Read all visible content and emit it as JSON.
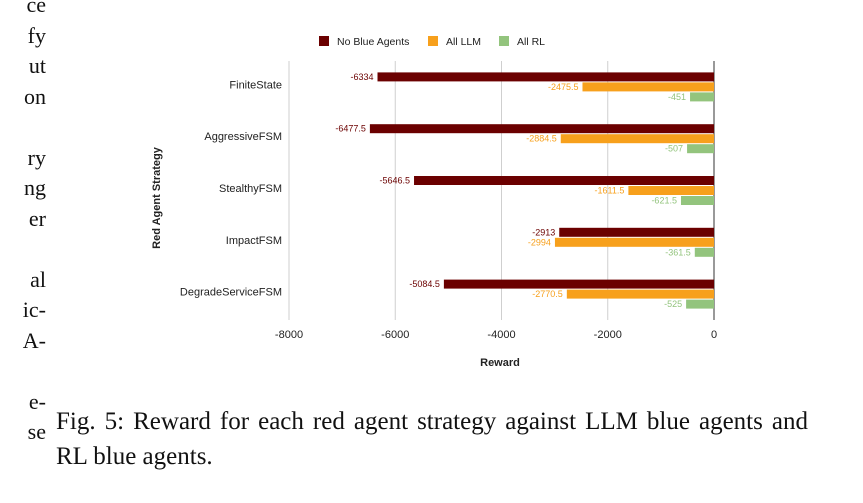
{
  "left_margin_text": [
    "ce",
    "fy",
    "ut",
    "on",
    "",
    "ry",
    "ng",
    "er",
    "",
    "al",
    "ic-",
    "A-",
    "",
    "e-",
    "se"
  ],
  "caption": "Fig. 5: Reward for each red agent strategy against LLM blue agents and RL blue agents.",
  "chart_data": {
    "type": "bar",
    "orientation": "horizontal",
    "title": "",
    "xlabel": "Reward",
    "ylabel": "Red Agent Strategy",
    "categories": [
      "FiniteState",
      "AggressiveFSM",
      "StealthyFSM",
      "ImpactFSM",
      "DegradeServiceFSM"
    ],
    "series": [
      {
        "name": "No Blue Agents",
        "color": "#6b0000",
        "values": [
          -6334,
          -6477.5,
          -5646.5,
          -2913,
          -5084.5
        ],
        "labels": [
          "-6334",
          "-6477.5",
          "-5646.5",
          "-2913",
          "-5084.5"
        ]
      },
      {
        "name": "All LLM",
        "color": "#f7a01c",
        "values": [
          -2475.5,
          -2884.5,
          -1611.5,
          -2994,
          -2770.5
        ],
        "labels": [
          "-2475.5",
          "-2884.5",
          "-1611.5",
          "-2994",
          "-2770.5"
        ]
      },
      {
        "name": "All RL",
        "color": "#93c47d",
        "values": [
          -451,
          -507,
          -621.5,
          -361.5,
          -525
        ],
        "labels": [
          "-451",
          "-507",
          "-621.5",
          "-361.5",
          "-525"
        ]
      }
    ],
    "xlim": [
      -8000,
      0
    ],
    "xticks": [
      -8000,
      -6000,
      -4000,
      -2000,
      0
    ],
    "xtick_labels": [
      "-8000",
      "-6000",
      "-4000",
      "-2000",
      "0"
    ],
    "grid": "vertical",
    "legend_position": "top"
  }
}
